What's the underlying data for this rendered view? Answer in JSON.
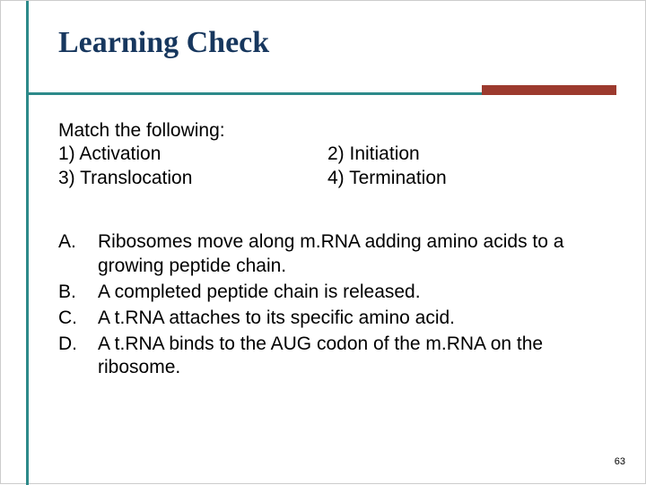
{
  "colors": {
    "teal": "#2d8a8a",
    "brick": "#9c3a2e",
    "title": "#17375e",
    "text": "#000000"
  },
  "title": "Learning Check",
  "intro": "Match the following:",
  "terms": {
    "t1": "1) Activation",
    "t2": "2) Initiation",
    "t3": "3) Translocation",
    "t4": "4) Termination"
  },
  "answers": [
    {
      "letter": "A.",
      "text": "Ribosomes move along m.RNA adding amino acids to a growing peptide chain."
    },
    {
      "letter": "B.",
      "text": "A completed peptide chain is released."
    },
    {
      "letter": "C.",
      "text": "A t.RNA attaches to its specific amino acid."
    },
    {
      "letter": "D.",
      "text": "A t.RNA binds to the AUG codon of the m.RNA on the ribosome."
    }
  ],
  "pageNumber": "63"
}
